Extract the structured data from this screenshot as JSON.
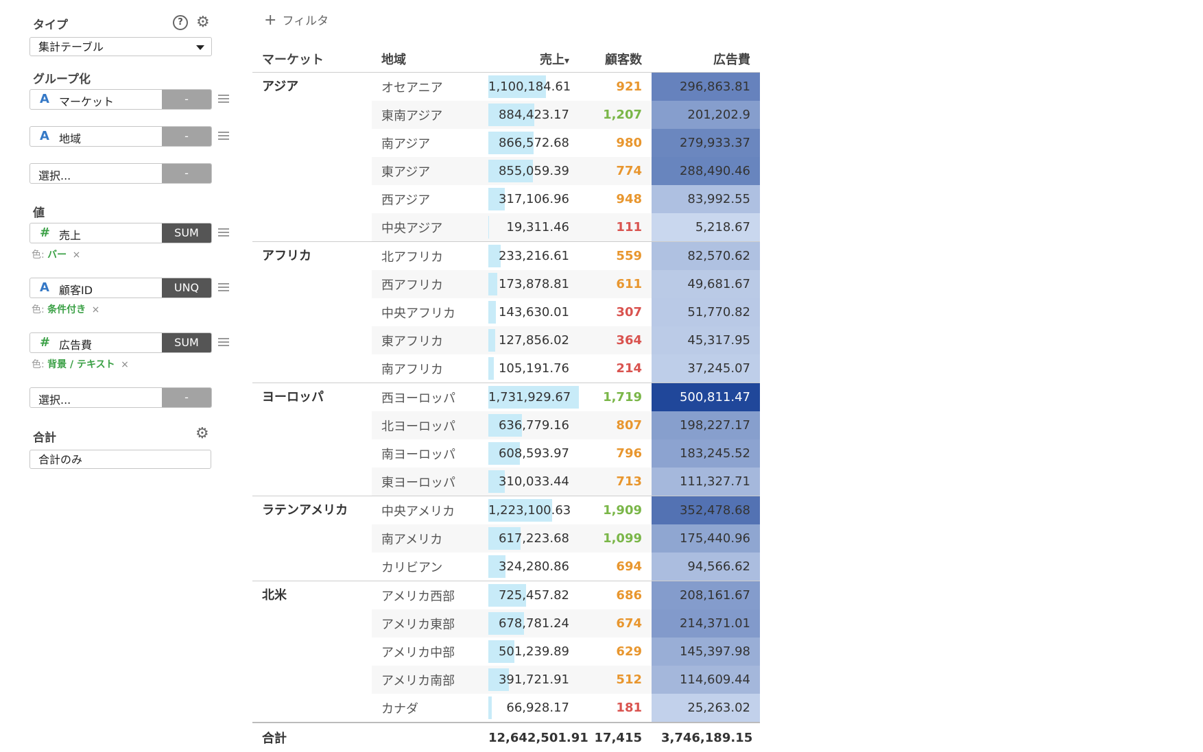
{
  "sidebar": {
    "type_label": "タイプ",
    "help_icon_glyph": "?",
    "type_select": "集計テーブル",
    "group_label": "グループ化",
    "groups": [
      {
        "type": "A",
        "label": "マーケット",
        "agg": "-"
      },
      {
        "type": "A",
        "label": "地域",
        "agg": "-"
      },
      {
        "type": "",
        "label": "選択...",
        "agg": "-"
      }
    ],
    "values_label": "値",
    "values": [
      {
        "type": "#",
        "label": "売上",
        "agg": "SUM",
        "color_prefix": "色:",
        "color_value": "バー"
      },
      {
        "type": "A",
        "label": "顧客ID",
        "agg": "UNQ",
        "color_prefix": "色:",
        "color_value": "条件付き"
      },
      {
        "type": "#",
        "label": "広告費",
        "agg": "SUM",
        "color_prefix": "色:",
        "color_value": "背景 / テキスト"
      },
      {
        "type": "",
        "label": "選択...",
        "agg": "-"
      }
    ],
    "remove_glyph": "×",
    "total_label": "合計",
    "total_select": "合計のみ"
  },
  "filter_label": "フィルタ",
  "table": {
    "headers": {
      "market": "マーケット",
      "region": "地域",
      "sales": "売上",
      "customers": "顧客数",
      "ad": "広告費"
    },
    "sort_glyph": "▾",
    "groups": [
      {
        "market": "アジア",
        "rows": [
          {
            "region": "オセアニア",
            "sales": "1,100,184.61",
            "sales_value": 1100184.61,
            "customers": "921",
            "ad": "296,863.81",
            "ad_value": 296863.81
          },
          {
            "region": "東南アジア",
            "sales": "884,423.17",
            "sales_value": 884423.17,
            "customers": "1,207",
            "ad": "201,202.9",
            "ad_value": 201202.9
          },
          {
            "region": "南アジア",
            "sales": "866,572.68",
            "sales_value": 866572.68,
            "customers": "980",
            "ad": "279,933.37",
            "ad_value": 279933.37
          },
          {
            "region": "東アジア",
            "sales": "855,059.39",
            "sales_value": 855059.39,
            "customers": "774",
            "ad": "288,490.46",
            "ad_value": 288490.46
          },
          {
            "region": "西アジア",
            "sales": "317,106.96",
            "sales_value": 317106.96,
            "customers": "948",
            "ad": "83,992.55",
            "ad_value": 83992.55
          },
          {
            "region": "中央アジア",
            "sales": "19,311.46",
            "sales_value": 19311.46,
            "customers": "111",
            "ad": "5,218.67",
            "ad_value": 5218.67
          }
        ]
      },
      {
        "market": "アフリカ",
        "rows": [
          {
            "region": "北アフリカ",
            "sales": "233,216.61",
            "sales_value": 233216.61,
            "customers": "559",
            "ad": "82,570.62",
            "ad_value": 82570.62
          },
          {
            "region": "西アフリカ",
            "sales": "173,878.81",
            "sales_value": 173878.81,
            "customers": "611",
            "ad": "49,681.67",
            "ad_value": 49681.67
          },
          {
            "region": "中央アフリカ",
            "sales": "143,630.01",
            "sales_value": 143630.01,
            "customers": "307",
            "ad": "51,770.82",
            "ad_value": 51770.82
          },
          {
            "region": "東アフリカ",
            "sales": "127,856.02",
            "sales_value": 127856.02,
            "customers": "364",
            "ad": "45,317.95",
            "ad_value": 45317.95
          },
          {
            "region": "南アフリカ",
            "sales": "105,191.76",
            "sales_value": 105191.76,
            "customers": "214",
            "ad": "37,245.07",
            "ad_value": 37245.07
          }
        ]
      },
      {
        "market": "ヨーロッパ",
        "rows": [
          {
            "region": "西ヨーロッパ",
            "sales": "1,731,929.67",
            "sales_value": 1731929.67,
            "customers": "1,719",
            "ad": "500,811.47",
            "ad_value": 500811.47
          },
          {
            "region": "北ヨーロッパ",
            "sales": "636,779.16",
            "sales_value": 636779.16,
            "customers": "807",
            "ad": "198,227.17",
            "ad_value": 198227.17
          },
          {
            "region": "南ヨーロッパ",
            "sales": "608,593.97",
            "sales_value": 608593.97,
            "customers": "796",
            "ad": "183,245.52",
            "ad_value": 183245.52
          },
          {
            "region": "東ヨーロッパ",
            "sales": "310,033.44",
            "sales_value": 310033.44,
            "customers": "713",
            "ad": "111,327.71",
            "ad_value": 111327.71
          }
        ]
      },
      {
        "market": "ラテンアメリカ",
        "rows": [
          {
            "region": "中央アメリカ",
            "sales": "1,223,100.63",
            "sales_value": 1223100.63,
            "customers": "1,909",
            "ad": "352,478.68",
            "ad_value": 352478.68
          },
          {
            "region": "南アメリカ",
            "sales": "617,223.68",
            "sales_value": 617223.68,
            "customers": "1,099",
            "ad": "175,440.96",
            "ad_value": 175440.96
          },
          {
            "region": "カリビアン",
            "sales": "324,280.86",
            "sales_value": 324280.86,
            "customers": "694",
            "ad": "94,566.62",
            "ad_value": 94566.62
          }
        ]
      },
      {
        "market": "北米",
        "rows": [
          {
            "region": "アメリカ西部",
            "sales": "725,457.82",
            "sales_value": 725457.82,
            "customers": "686",
            "ad": "208,161.67",
            "ad_value": 208161.67
          },
          {
            "region": "アメリカ東部",
            "sales": "678,781.24",
            "sales_value": 678781.24,
            "customers": "674",
            "ad": "214,371.01",
            "ad_value": 214371.01
          },
          {
            "region": "アメリカ中部",
            "sales": "501,239.89",
            "sales_value": 501239.89,
            "customers": "629",
            "ad": "145,397.98",
            "ad_value": 145397.98
          },
          {
            "region": "アメリカ南部",
            "sales": "391,721.91",
            "sales_value": 391721.91,
            "customers": "512",
            "ad": "114,609.44",
            "ad_value": 114609.44
          },
          {
            "region": "カナダ",
            "sales": "66,928.17",
            "sales_value": 66928.17,
            "customers": "181",
            "ad": "25,263.02",
            "ad_value": 25263.02
          }
        ]
      }
    ],
    "total": {
      "label": "合計",
      "sales": "12,642,501.91",
      "customers": "17,415",
      "ad": "3,746,189.15"
    }
  },
  "colors": {
    "bar": "#c8ebf8",
    "cust_high": "#7ab648",
    "cust_mid": "#e8962e",
    "cust_low": "#d9534f",
    "ad_low": "#c9d7ee",
    "ad_high": "#20479a"
  }
}
